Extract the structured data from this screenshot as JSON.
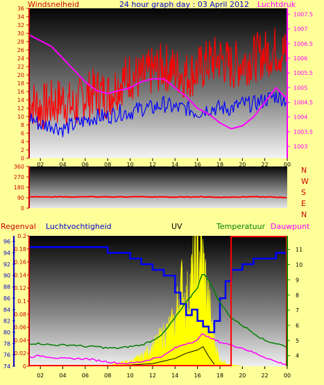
{
  "header": {
    "title": "24 hour graph day : 03 April 2012",
    "left_label": "Windsnelheid",
    "right_label": "Luchtdruk"
  },
  "direction_labels": [
    "N",
    "W",
    "S",
    "E",
    "N"
  ],
  "bottom_labels": {
    "rain": "Regenval",
    "humidity": "Luchtvochtigheid",
    "uv": "UV",
    "temperature": "Temperatuur",
    "dewpoint": "Dauwpunt"
  },
  "colors": {
    "wind_gust": "#ff0000",
    "wind_avg": "#0000ff",
    "pressure": "#ff00ff",
    "direction": "#ff0000",
    "humidity": "#0000ff",
    "uv": "#ffff00",
    "temperature": "#008000",
    "dewpoint": "#ff00ff",
    "rain": "#ff0000",
    "solar": "#000000"
  },
  "chart_data": [
    {
      "type": "line",
      "panel": "wind",
      "x_ticks": [
        "02",
        "04",
        "06",
        "08",
        "10",
        "12",
        "14",
        "16",
        "18",
        "20",
        "22",
        "00"
      ],
      "y_left_ticks": [
        "0",
        "2",
        "4",
        "6",
        "8",
        "10",
        "12",
        "14",
        "16",
        "18",
        "20",
        "22",
        "24",
        "26",
        "28",
        "30",
        "32",
        "34",
        "36"
      ],
      "y_left_range": [
        0,
        36
      ],
      "y_right_ticks": [
        "1003",
        "1003.5",
        "1004",
        "1004.5",
        "1005",
        "1005.5",
        "1006",
        "1006.5",
        "1007",
        "1007.5"
      ],
      "y_right_range": [
        1002.6,
        1007.7
      ],
      "x_range": [
        1,
        24
      ],
      "series": [
        {
          "role": "gust",
          "hours": [
            1,
            2,
            3,
            4,
            5,
            6,
            7,
            8,
            9,
            10,
            11,
            12,
            13,
            14,
            15,
            16,
            17,
            18,
            19,
            20,
            21,
            22,
            23,
            24
          ],
          "values": [
            14,
            12,
            13,
            14,
            12,
            15,
            16,
            15,
            18,
            20,
            19,
            21,
            22,
            21,
            20,
            21,
            23,
            24,
            22,
            23,
            24,
            25,
            26,
            25
          ]
        },
        {
          "role": "average",
          "hours": [
            1,
            2,
            3,
            4,
            5,
            6,
            7,
            8,
            9,
            10,
            11,
            12,
            13,
            14,
            15,
            16,
            17,
            18,
            19,
            20,
            21,
            22,
            23,
            24
          ],
          "values": [
            10,
            8,
            8,
            7,
            8,
            9,
            10,
            10,
            11,
            11,
            12,
            12,
            13,
            12,
            12,
            11,
            12,
            12,
            12,
            13,
            13,
            14,
            15,
            14
          ]
        },
        {
          "role": "pressure",
          "hours": [
            1,
            2,
            3,
            4,
            5,
            6,
            7,
            8,
            9,
            10,
            11,
            12,
            13,
            14,
            15,
            16,
            17,
            18,
            19,
            20,
            21,
            22,
            23,
            24
          ],
          "values": [
            1006.8,
            1006.6,
            1006.4,
            1006.0,
            1005.6,
            1005.2,
            1004.9,
            1004.8,
            1004.9,
            1005.0,
            1005.2,
            1005.3,
            1005.3,
            1005.0,
            1004.7,
            1004.3,
            1004.1,
            1003.8,
            1003.6,
            1003.7,
            1004.0,
            1004.5,
            1005.0,
            1004.6
          ]
        }
      ]
    },
    {
      "type": "line",
      "panel": "direction",
      "x_range": [
        1,
        24
      ],
      "y_ticks": [
        "0",
        "90",
        "180",
        "270",
        "360"
      ],
      "y_range": [
        0,
        360
      ],
      "series": [
        {
          "role": "direction",
          "hours": [
            1,
            2,
            3,
            4,
            5,
            6,
            7,
            8,
            9,
            10,
            11,
            12,
            13,
            14,
            15,
            16,
            17,
            18,
            19,
            20,
            21,
            22,
            23,
            24
          ],
          "values": [
            95,
            100,
            97,
            98,
            96,
            99,
            97,
            96,
            98,
            97,
            99,
            96,
            97,
            95,
            96,
            98,
            97,
            93,
            96,
            97,
            98,
            96,
            95,
            92
          ]
        }
      ]
    },
    {
      "type": "line",
      "panel": "humidity_uv",
      "x_ticks": [
        "02",
        "04",
        "06",
        "08",
        "10",
        "12",
        "14",
        "16",
        "18",
        "20",
        "22",
        "00"
      ],
      "x_range": [
        1,
        24
      ],
      "y_hum_ticks": [
        "74",
        "76",
        "78",
        "80",
        "82",
        "84",
        "86",
        "88",
        "90",
        "92",
        "94",
        "96"
      ],
      "y_hum_range": [
        74,
        97
      ],
      "y_rain_ticks": [
        "0",
        "0.02",
        "0.04",
        "0.06",
        "0.08",
        "0.1",
        "0.12",
        "0.14",
        "0.16",
        "0.18",
        "0.2"
      ],
      "y_rain_range": [
        0,
        0.2
      ],
      "y_temp_ticks": [
        "4",
        "5",
        "6",
        "7",
        "8",
        "9",
        "10",
        "11"
      ],
      "y_temp_range": [
        3.3,
        11.9
      ],
      "series": [
        {
          "role": "humidity",
          "hours": [
            1,
            2,
            3,
            4,
            5,
            6,
            7,
            8,
            9,
            10,
            11,
            12,
            13,
            14,
            14.5,
            15,
            15.5,
            16,
            16.5,
            17,
            17.5,
            18,
            18.5,
            19,
            20,
            21,
            22,
            23,
            24
          ],
          "values": [
            95,
            95,
            95,
            95,
            95,
            95,
            95,
            94,
            94,
            93,
            92,
            91,
            90,
            87,
            85,
            83,
            84,
            82,
            81,
            80,
            82,
            86,
            89,
            91,
            92,
            93,
            93,
            94,
            94
          ]
        },
        {
          "role": "temperature",
          "hours": [
            1,
            2,
            3,
            4,
            5,
            6,
            7,
            8,
            9,
            10,
            11,
            12,
            13,
            14,
            15,
            16,
            16.5,
            17,
            18,
            19,
            20,
            21,
            22,
            23,
            24
          ],
          "values": [
            4.8,
            4.8,
            4.7,
            4.7,
            4.7,
            4.6,
            4.6,
            4.5,
            4.5,
            4.6,
            4.7,
            5.0,
            5.5,
            6.5,
            7.5,
            8.5,
            9.5,
            9.0,
            7.5,
            6.5,
            6.0,
            5.5,
            5.0,
            4.8,
            4.6
          ]
        },
        {
          "role": "dewpoint",
          "hours": [
            1,
            2,
            3,
            4,
            5,
            6,
            7,
            8,
            9,
            10,
            11,
            12,
            13,
            14,
            15,
            16,
            16.5,
            17,
            18,
            19,
            20,
            21,
            22,
            23,
            24
          ],
          "values": [
            3.9,
            4.0,
            3.9,
            3.8,
            3.8,
            3.8,
            3.7,
            3.6,
            3.5,
            3.5,
            3.6,
            3.8,
            4.0,
            4.5,
            4.8,
            5.0,
            5.5,
            5.2,
            4.9,
            4.7,
            4.5,
            4.2,
            3.9,
            3.6,
            3.4
          ]
        },
        {
          "role": "uv",
          "hours": [
            8,
            9,
            10,
            11,
            12,
            13,
            14,
            14.5,
            15,
            15.5,
            16,
            16.3,
            16.6,
            17,
            17.5,
            18,
            19,
            20
          ],
          "values": [
            0.002,
            0.005,
            0.008,
            0.015,
            0.03,
            0.05,
            0.07,
            0.13,
            0.1,
            0.14,
            0.17,
            0.19,
            0.15,
            0.1,
            0.04,
            0.01,
            0.002,
            0.0
          ]
        },
        {
          "role": "solar",
          "hours": [
            8,
            10,
            12,
            13,
            14,
            15,
            16,
            16.5,
            17,
            17.5
          ],
          "values": [
            0.001,
            0.002,
            0.004,
            0.008,
            0.012,
            0.02,
            0.025,
            0.03,
            0.015,
            0.003
          ]
        },
        {
          "role": "rain",
          "hours": [
            1,
            19,
            19,
            24
          ],
          "values": [
            0,
            0,
            0.2,
            0.2
          ]
        }
      ]
    }
  ]
}
